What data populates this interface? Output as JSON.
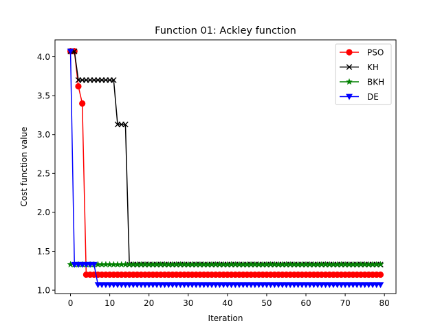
{
  "chart_data": {
    "type": "line",
    "title": "Function 01: Ackley function",
    "xlabel": "Iteration",
    "ylabel": "Cost function value",
    "xlim": [
      -3.95,
      82.95
    ],
    "ylim": [
      0.9566,
      4.2168
    ],
    "x_ticks": [
      0,
      10,
      20,
      30,
      40,
      50,
      60,
      70,
      80
    ],
    "x_tick_labels": [
      "0",
      "10",
      "20",
      "30",
      "40",
      "50",
      "60",
      "70",
      "80"
    ],
    "y_ticks": [
      1.0,
      1.5,
      2.0,
      2.5,
      3.0,
      3.5,
      4.0
    ],
    "y_tick_labels": [
      "1.0",
      "1.5",
      "2.0",
      "2.5",
      "3.0",
      "3.5",
      "4.0"
    ],
    "grid": false,
    "legend_position": "top-right",
    "n_iterations": 80,
    "series": [
      {
        "name": "PSO",
        "color": "#ff0000",
        "marker": "circle",
        "steps": [
          [
            0,
            4.07
          ],
          [
            2,
            3.62
          ],
          [
            3,
            3.4
          ],
          [
            4,
            1.2
          ]
        ]
      },
      {
        "name": "KH",
        "color": "#000000",
        "marker": "x",
        "steps": [
          [
            0,
            4.07
          ],
          [
            2,
            3.7
          ],
          [
            12,
            3.13
          ],
          [
            15,
            1.33
          ]
        ]
      },
      {
        "name": "BKH",
        "color": "#008000",
        "marker": "star",
        "steps": [
          [
            0,
            1.33
          ]
        ]
      },
      {
        "name": "DE",
        "color": "#0000ff",
        "marker": "triangle-down",
        "steps": [
          [
            0,
            4.07
          ],
          [
            1,
            1.33
          ],
          [
            7,
            1.07
          ]
        ]
      }
    ]
  }
}
